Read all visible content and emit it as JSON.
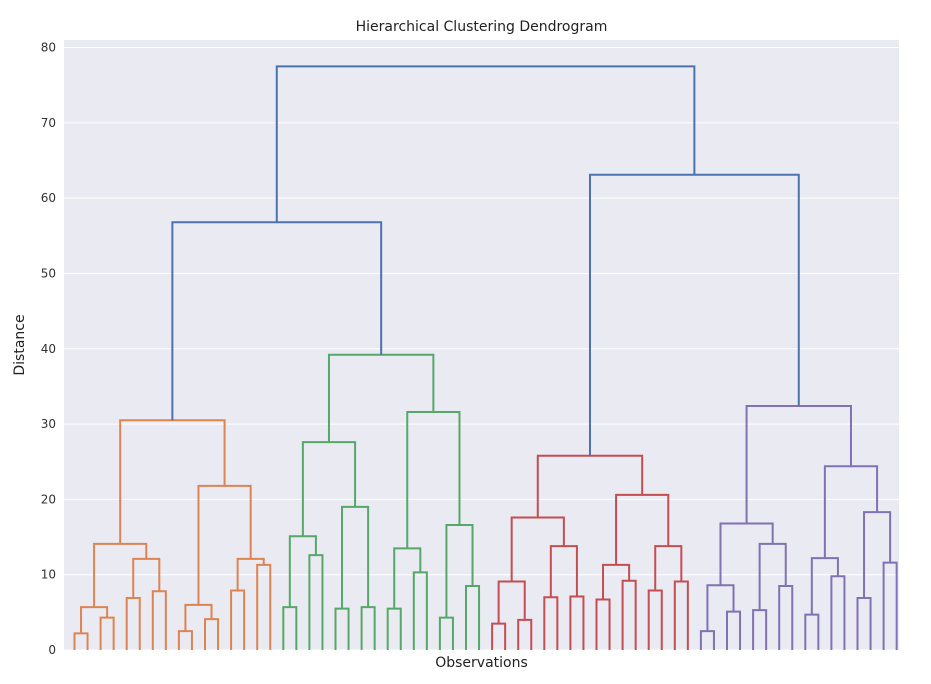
{
  "chart_data": {
    "type": "dendrogram",
    "title": "Hierarchical Clustering Dendrogram",
    "xlabel": "Observations",
    "ylabel": "Distance",
    "ylim": [
      0,
      81
    ],
    "yticks": [
      0,
      10,
      20,
      30,
      40,
      50,
      60,
      70,
      80
    ],
    "grid": true,
    "leaf_count": 64,
    "colors": {
      "background": "#eaeaf2",
      "grid": "#ffffff",
      "above_threshold": "#4c72b0",
      "cluster_1": "#dd8452",
      "cluster_2": "#55a868",
      "cluster_3": "#c44e52",
      "cluster_4": "#8172b3"
    },
    "tree": {
      "h": 77.5,
      "c": "above_threshold",
      "ch": [
        {
          "h": 56.8,
          "c": "above_threshold",
          "ch": [
            {
              "h": 30.5,
              "c": "cluster_1",
              "ch": [
                {
                  "h": 14.1,
                  "c": "cluster_1",
                  "ch": [
                    {
                      "h": 5.7,
                      "c": "cluster_1",
                      "ch": [
                        {
                          "h": 2.2,
                          "c": "cluster_1",
                          "ch": [
                            {
                              "leaf": 1
                            },
                            {
                              "leaf": 1
                            }
                          ]
                        },
                        {
                          "h": 4.3,
                          "c": "cluster_1",
                          "ch": [
                            {
                              "leaf": 1
                            },
                            {
                              "leaf": 1
                            }
                          ]
                        }
                      ]
                    },
                    {
                      "h": 12.1,
                      "c": "cluster_1",
                      "ch": [
                        {
                          "h": 6.9,
                          "c": "cluster_1",
                          "ch": [
                            {
                              "leaf": 1
                            },
                            {
                              "leaf": 1
                            }
                          ]
                        },
                        {
                          "h": 7.8,
                          "c": "cluster_1",
                          "ch": [
                            {
                              "leaf": 1
                            },
                            {
                              "leaf": 1
                            }
                          ]
                        }
                      ]
                    }
                  ]
                },
                {
                  "h": 21.8,
                  "c": "cluster_1",
                  "ch": [
                    {
                      "h": 6.0,
                      "c": "cluster_1",
                      "ch": [
                        {
                          "h": 2.5,
                          "c": "cluster_1",
                          "ch": [
                            {
                              "leaf": 1
                            },
                            {
                              "leaf": 1
                            }
                          ]
                        },
                        {
                          "h": 4.1,
                          "c": "cluster_1",
                          "ch": [
                            {
                              "leaf": 1
                            },
                            {
                              "leaf": 1
                            }
                          ]
                        }
                      ]
                    },
                    {
                      "h": 12.1,
                      "c": "cluster_1",
                      "ch": [
                        {
                          "h": 7.9,
                          "c": "cluster_1",
                          "ch": [
                            {
                              "leaf": 1
                            },
                            {
                              "leaf": 1
                            }
                          ]
                        },
                        {
                          "h": 11.3,
                          "c": "cluster_1",
                          "ch": [
                            {
                              "leaf": 1
                            },
                            {
                              "leaf": 1
                            }
                          ]
                        }
                      ]
                    }
                  ]
                }
              ]
            },
            {
              "h": 39.2,
              "c": "cluster_2",
              "ch": [
                {
                  "h": 27.6,
                  "c": "cluster_2",
                  "ch": [
                    {
                      "h": 15.1,
                      "c": "cluster_2",
                      "ch": [
                        {
                          "h": 5.7,
                          "c": "cluster_2",
                          "ch": [
                            {
                              "leaf": 1
                            },
                            {
                              "leaf": 1
                            }
                          ]
                        },
                        {
                          "h": 12.6,
                          "c": "cluster_2",
                          "ch": [
                            {
                              "leaf": 1
                            },
                            {
                              "leaf": 1
                            }
                          ]
                        }
                      ]
                    },
                    {
                      "h": 19.0,
                      "c": "cluster_2",
                      "ch": [
                        {
                          "h": 5.5,
                          "c": "cluster_2",
                          "ch": [
                            {
                              "leaf": 1
                            },
                            {
                              "leaf": 1
                            }
                          ]
                        },
                        {
                          "h": 5.7,
                          "c": "cluster_2",
                          "ch": [
                            {
                              "leaf": 1
                            },
                            {
                              "leaf": 1
                            }
                          ]
                        }
                      ]
                    }
                  ]
                },
                {
                  "h": 31.6,
                  "c": "cluster_2",
                  "ch": [
                    {
                      "h": 13.5,
                      "c": "cluster_2",
                      "ch": [
                        {
                          "h": 5.5,
                          "c": "cluster_2",
                          "ch": [
                            {
                              "leaf": 1
                            },
                            {
                              "leaf": 1
                            }
                          ]
                        },
                        {
                          "h": 10.3,
                          "c": "cluster_2",
                          "ch": [
                            {
                              "leaf": 1
                            },
                            {
                              "leaf": 1
                            }
                          ]
                        }
                      ]
                    },
                    {
                      "h": 16.6,
                      "c": "cluster_2",
                      "ch": [
                        {
                          "h": 4.3,
                          "c": "cluster_2",
                          "ch": [
                            {
                              "leaf": 1
                            },
                            {
                              "leaf": 1
                            }
                          ]
                        },
                        {
                          "h": 8.5,
                          "c": "cluster_2",
                          "ch": [
                            {
                              "leaf": 1
                            },
                            {
                              "leaf": 1
                            }
                          ]
                        }
                      ]
                    }
                  ]
                }
              ]
            }
          ]
        },
        {
          "h": 63.1,
          "c": "above_threshold",
          "ch": [
            {
              "h": 25.8,
              "c": "cluster_3",
              "ch": [
                {
                  "h": 17.6,
                  "c": "cluster_3",
                  "ch": [
                    {
                      "h": 9.1,
                      "c": "cluster_3",
                      "ch": [
                        {
                          "h": 3.5,
                          "c": "cluster_3",
                          "ch": [
                            {
                              "leaf": 1
                            },
                            {
                              "leaf": 1
                            }
                          ]
                        },
                        {
                          "h": 4.0,
                          "c": "cluster_3",
                          "ch": [
                            {
                              "leaf": 1
                            },
                            {
                              "leaf": 1
                            }
                          ]
                        }
                      ]
                    },
                    {
                      "h": 13.8,
                      "c": "cluster_3",
                      "ch": [
                        {
                          "h": 7.0,
                          "c": "cluster_3",
                          "ch": [
                            {
                              "leaf": 1
                            },
                            {
                              "leaf": 1
                            }
                          ]
                        },
                        {
                          "h": 7.1,
                          "c": "cluster_3",
                          "ch": [
                            {
                              "leaf": 1
                            },
                            {
                              "leaf": 1
                            }
                          ]
                        }
                      ]
                    }
                  ]
                },
                {
                  "h": 20.6,
                  "c": "cluster_3",
                  "ch": [
                    {
                      "h": 11.3,
                      "c": "cluster_3",
                      "ch": [
                        {
                          "h": 6.7,
                          "c": "cluster_3",
                          "ch": [
                            {
                              "leaf": 1
                            },
                            {
                              "leaf": 1
                            }
                          ]
                        },
                        {
                          "h": 9.2,
                          "c": "cluster_3",
                          "ch": [
                            {
                              "leaf": 1
                            },
                            {
                              "leaf": 1
                            }
                          ]
                        }
                      ]
                    },
                    {
                      "h": 13.8,
                      "c": "cluster_3",
                      "ch": [
                        {
                          "h": 7.9,
                          "c": "cluster_3",
                          "ch": [
                            {
                              "leaf": 1
                            },
                            {
                              "leaf": 1
                            }
                          ]
                        },
                        {
                          "h": 9.1,
                          "c": "cluster_3",
                          "ch": [
                            {
                              "leaf": 1
                            },
                            {
                              "leaf": 1
                            }
                          ]
                        }
                      ]
                    }
                  ]
                }
              ]
            },
            {
              "h": 32.4,
              "c": "cluster_4",
              "ch": [
                {
                  "h": 16.8,
                  "c": "cluster_4",
                  "ch": [
                    {
                      "h": 8.6,
                      "c": "cluster_4",
                      "ch": [
                        {
                          "h": 2.5,
                          "c": "cluster_4",
                          "ch": [
                            {
                              "leaf": 1
                            },
                            {
                              "leaf": 1
                            }
                          ]
                        },
                        {
                          "h": 5.1,
                          "c": "cluster_4",
                          "ch": [
                            {
                              "leaf": 1
                            },
                            {
                              "leaf": 1
                            }
                          ]
                        }
                      ]
                    },
                    {
                      "h": 14.1,
                      "c": "cluster_4",
                      "ch": [
                        {
                          "h": 5.3,
                          "c": "cluster_4",
                          "ch": [
                            {
                              "leaf": 1
                            },
                            {
                              "leaf": 1
                            }
                          ]
                        },
                        {
                          "h": 8.5,
                          "c": "cluster_4",
                          "ch": [
                            {
                              "leaf": 1
                            },
                            {
                              "leaf": 1
                            }
                          ]
                        }
                      ]
                    }
                  ]
                },
                {
                  "h": 24.4,
                  "c": "cluster_4",
                  "ch": [
                    {
                      "h": 12.2,
                      "c": "cluster_4",
                      "ch": [
                        {
                          "h": 4.7,
                          "c": "cluster_4",
                          "ch": [
                            {
                              "leaf": 1
                            },
                            {
                              "leaf": 1
                            }
                          ]
                        },
                        {
                          "h": 9.8,
                          "c": "cluster_4",
                          "ch": [
                            {
                              "leaf": 1
                            },
                            {
                              "leaf": 1
                            }
                          ]
                        }
                      ]
                    },
                    {
                      "h": 18.3,
                      "c": "cluster_4",
                      "ch": [
                        {
                          "h": 6.9,
                          "c": "cluster_4",
                          "ch": [
                            {
                              "leaf": 1
                            },
                            {
                              "leaf": 1
                            }
                          ]
                        },
                        {
                          "h": 11.6,
                          "c": "cluster_4",
                          "ch": [
                            {
                              "leaf": 1
                            },
                            {
                              "leaf": 1
                            }
                          ]
                        }
                      ]
                    }
                  ]
                }
              ]
            }
          ]
        }
      ]
    }
  }
}
